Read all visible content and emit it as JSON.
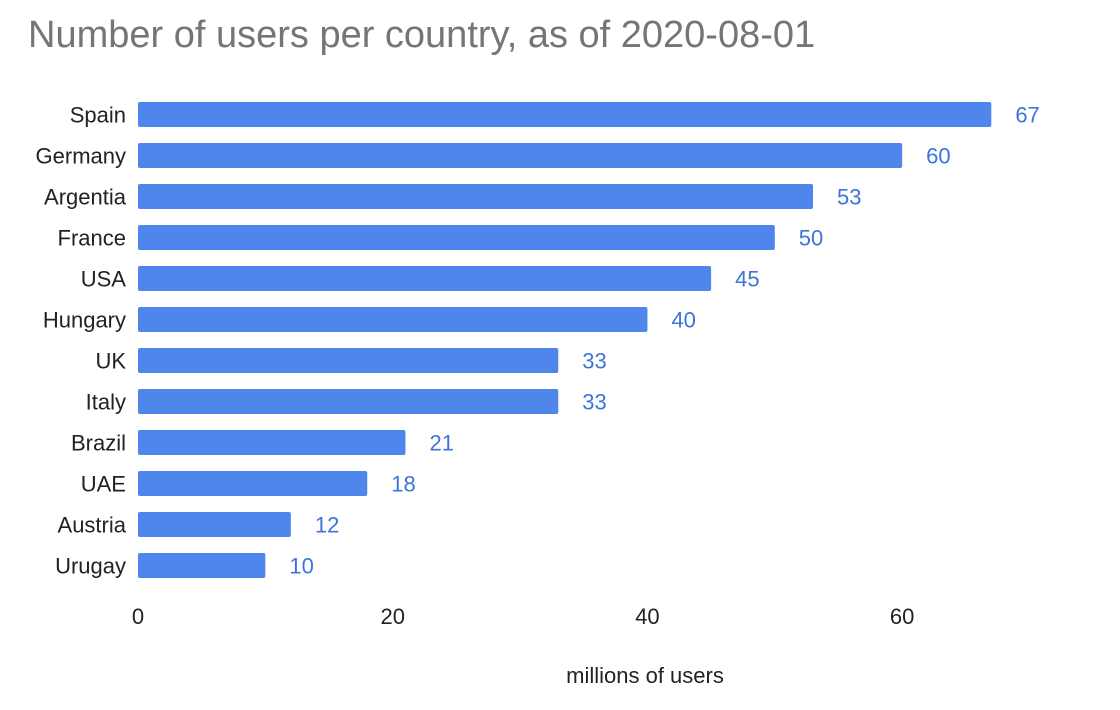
{
  "chart_data": {
    "type": "bar",
    "orientation": "horizontal",
    "title": "Number of users per country, as of 2020-08-01",
    "xlabel": "millions of users",
    "ylabel": "",
    "categories": [
      "Spain",
      "Germany",
      "Argentia",
      "France",
      "USA",
      "Hungary",
      "UK",
      "Italy",
      "Brazil",
      "UAE",
      "Austria",
      "Urugay"
    ],
    "values": [
      67,
      60,
      53,
      50,
      45,
      40,
      33,
      33,
      21,
      18,
      12,
      10
    ],
    "xlim": [
      0,
      72
    ],
    "xticks": [
      0,
      20,
      40,
      60
    ],
    "data_labels": true,
    "grid": false,
    "legend": "none",
    "colors": {
      "bar": "#4f86ec",
      "data_label": "#3d74d9",
      "title": "#757575",
      "text": "#222222"
    }
  }
}
